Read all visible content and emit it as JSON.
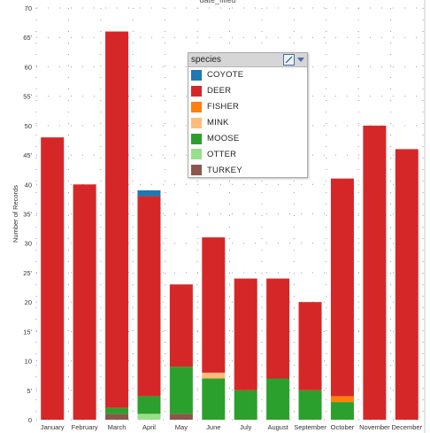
{
  "header": {
    "title_fragment": "date_filled"
  },
  "chart_data": {
    "type": "bar",
    "stacked": true,
    "categories": [
      "January",
      "February",
      "March",
      "April",
      "May",
      "June",
      "July",
      "August",
      "September",
      "October",
      "November",
      "December"
    ],
    "ylabel": "Number of Records",
    "ylim": [
      0,
      70
    ],
    "yticks": [
      0,
      5,
      10,
      15,
      20,
      25,
      30,
      35,
      40,
      45,
      50,
      55,
      60,
      65,
      70
    ],
    "ytick_labels": [
      "0",
      "5'",
      "10",
      "15'",
      "20",
      "25'",
      "30",
      "35'",
      "40",
      "45'",
      "50",
      "55'",
      "60",
      "65'",
      "70"
    ],
    "grid": true,
    "legend_position": "top-center",
    "series": [
      {
        "name": "TURKEY",
        "color": "#8c564b",
        "values": [
          0,
          0,
          1,
          0,
          1,
          0,
          0,
          0,
          0,
          0,
          0,
          0
        ]
      },
      {
        "name": "OTTER",
        "color": "#98df8a",
        "values": [
          0,
          0,
          0,
          1,
          0,
          0,
          0,
          0,
          0,
          0,
          0,
          0
        ]
      },
      {
        "name": "MOOSE",
        "color": "#2ca02c",
        "values": [
          0,
          0,
          1,
          3,
          8,
          7,
          5,
          7,
          5,
          3,
          0,
          0
        ]
      },
      {
        "name": "MINK",
        "color": "#ffbb78",
        "values": [
          0,
          0,
          0,
          0,
          0,
          1,
          0,
          0,
          0,
          0,
          0,
          0
        ]
      },
      {
        "name": "FISHER",
        "color": "#ff7f0e",
        "values": [
          0,
          0,
          0,
          0,
          0,
          0,
          0,
          0,
          0,
          1,
          0,
          0
        ]
      },
      {
        "name": "DEER",
        "color": "#d62728",
        "values": [
          48,
          40,
          64,
          34,
          14,
          23,
          19,
          17,
          15,
          37,
          50,
          46
        ]
      },
      {
        "name": "COYOTE",
        "color": "#1f77b4",
        "values": [
          0,
          0,
          0,
          1,
          0,
          0,
          0,
          0,
          0,
          0,
          0,
          0
        ]
      }
    ]
  },
  "legend": {
    "title": "species",
    "items": [
      {
        "label": "COYOTE",
        "color": "#1f77b4"
      },
      {
        "label": "DEER",
        "color": "#d62728"
      },
      {
        "label": "FISHER",
        "color": "#ff7f0e"
      },
      {
        "label": "MINK",
        "color": "#ffbb78"
      },
      {
        "label": "MOOSE",
        "color": "#2ca02c"
      },
      {
        "label": "OTTER",
        "color": "#98df8a"
      },
      {
        "label": "TURKEY",
        "color": "#8c564b"
      }
    ]
  }
}
